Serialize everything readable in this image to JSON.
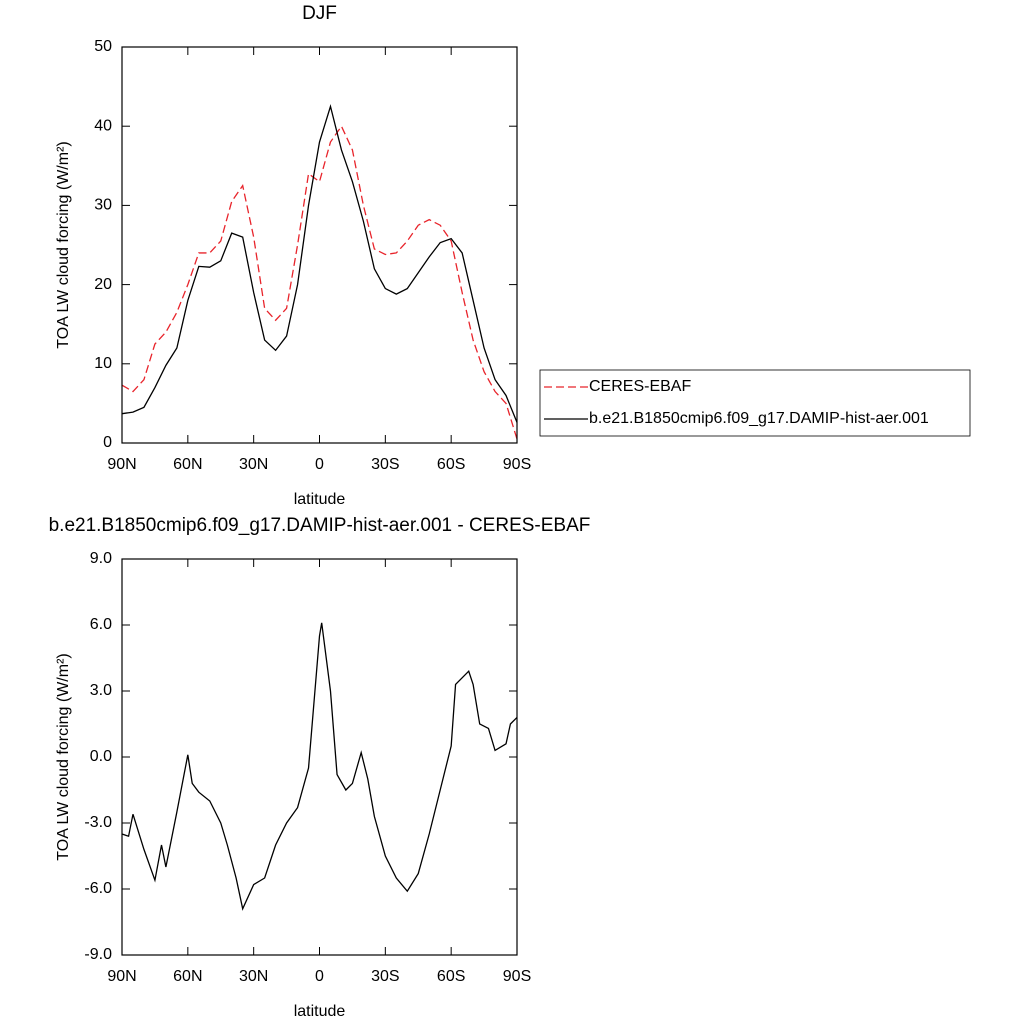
{
  "chart_data": [
    {
      "type": "line",
      "title": "DJF",
      "xlabel": "latitude",
      "ylabel": "TOA LW cloud forcing (W/m²)",
      "x": [
        90,
        85,
        80,
        75,
        70,
        65,
        60,
        55,
        50,
        45,
        40,
        35,
        30,
        25,
        20,
        15,
        10,
        5,
        0,
        -5,
        -10,
        -15,
        -20,
        -25,
        -30,
        -35,
        -40,
        -45,
        -50,
        -55,
        -60,
        -65,
        -70,
        -75,
        -80,
        -85,
        -90
      ],
      "series": [
        {
          "name": "CERES-EBAF",
          "color": "#e8242b",
          "dashed": true,
          "values": [
            7.3,
            6.5,
            8,
            12.5,
            14,
            16.5,
            20,
            24,
            24,
            25.5,
            30.5,
            32.5,
            26,
            17,
            15.5,
            17,
            25,
            34,
            33,
            38,
            40,
            37,
            30,
            24.5,
            23.8,
            24,
            25.5,
            27.5,
            28.2,
            27.5,
            25.5,
            19,
            13,
            9,
            6.5,
            5,
            0.5
          ]
        },
        {
          "name": "b.e21.B1850cmip6.f09_g17.DAMIP-hist-aer.001",
          "color": "#000000",
          "dashed": false,
          "values": [
            3.7,
            3.9,
            4.5,
            7,
            9.8,
            12,
            18,
            22.3,
            22.2,
            23,
            26.5,
            26,
            19,
            13,
            11.7,
            13.5,
            20,
            30,
            38,
            42.5,
            37,
            33,
            28,
            22,
            19.5,
            18.8,
            19.5,
            21.5,
            23.5,
            25.3,
            25.8,
            24,
            18,
            12,
            8,
            6,
            2.6
          ]
        }
      ],
      "xlim": [
        90,
        -90
      ],
      "xticks": [
        {
          "value": 90,
          "label": "90N"
        },
        {
          "value": 60,
          "label": "60N"
        },
        {
          "value": 30,
          "label": "30N"
        },
        0,
        {
          "value": -30,
          "label": "30S"
        },
        {
          "value": -60,
          "label": "60S"
        },
        {
          "value": -90,
          "label": "90S"
        }
      ],
      "ylim": [
        0,
        50
      ],
      "yticks": [
        0,
        10,
        20,
        30,
        40,
        50
      ],
      "legend": "right"
    },
    {
      "type": "line",
      "title": "b.e21.B1850cmip6.f09_g17.DAMIP-hist-aer.001 - CERES-EBAF",
      "xlabel": "latitude",
      "ylabel": "TOA LW cloud forcing (W/m²)",
      "x": [
        90,
        87,
        85,
        80,
        75,
        72,
        70,
        65,
        60,
        58,
        55,
        50,
        45,
        42,
        38,
        35,
        30,
        25,
        20,
        15,
        10,
        5,
        0,
        -1,
        -5,
        -8,
        -12,
        -15,
        -19,
        -22,
        -25,
        -30,
        -35,
        -40,
        -45,
        -50,
        -55,
        -60,
        -62,
        -65,
        -68,
        -70,
        -73,
        -77,
        -80,
        -85,
        -87,
        -90
      ],
      "series": [
        {
          "color": "#000000",
          "dashed": false,
          "values": [
            -3.5,
            -3.6,
            -2.6,
            -4.2,
            -5.6,
            -4,
            -5,
            -2.5,
            0.1,
            -1.2,
            -1.6,
            -2,
            -3,
            -4,
            -5.5,
            -6.9,
            -5.8,
            -5.5,
            -4,
            -3,
            -2.3,
            -0.5,
            5.5,
            6.1,
            3,
            -0.8,
            -1.5,
            -1.2,
            0.2,
            -1,
            -2.7,
            -4.5,
            -5.5,
            -6.1,
            -5.3,
            -3.5,
            -1.5,
            0.5,
            3.3,
            3.6,
            3.9,
            3.3,
            1.5,
            1.3,
            0.3,
            0.6,
            1.5,
            1.8
          ]
        }
      ],
      "xlim": [
        90,
        -90
      ],
      "xticks": [
        {
          "value": 90,
          "label": "90N"
        },
        {
          "value": 60,
          "label": "60N"
        },
        {
          "value": 30,
          "label": "30N"
        },
        0,
        {
          "value": -30,
          "label": "30S"
        },
        {
          "value": -60,
          "label": "60S"
        },
        {
          "value": -90,
          "label": "90S"
        }
      ],
      "ylim": [
        -9,
        9
      ],
      "yticks": [
        {
          "value": -9,
          "label": "-9.0"
        },
        {
          "value": -6,
          "label": "-6.0"
        },
        {
          "value": -3,
          "label": "-3.0"
        },
        {
          "value": 0,
          "label": "0.0"
        },
        {
          "value": 3,
          "label": "3.0"
        },
        {
          "value": 6,
          "label": "6.0"
        },
        {
          "value": 9,
          "label": "9.0"
        }
      ]
    }
  ]
}
